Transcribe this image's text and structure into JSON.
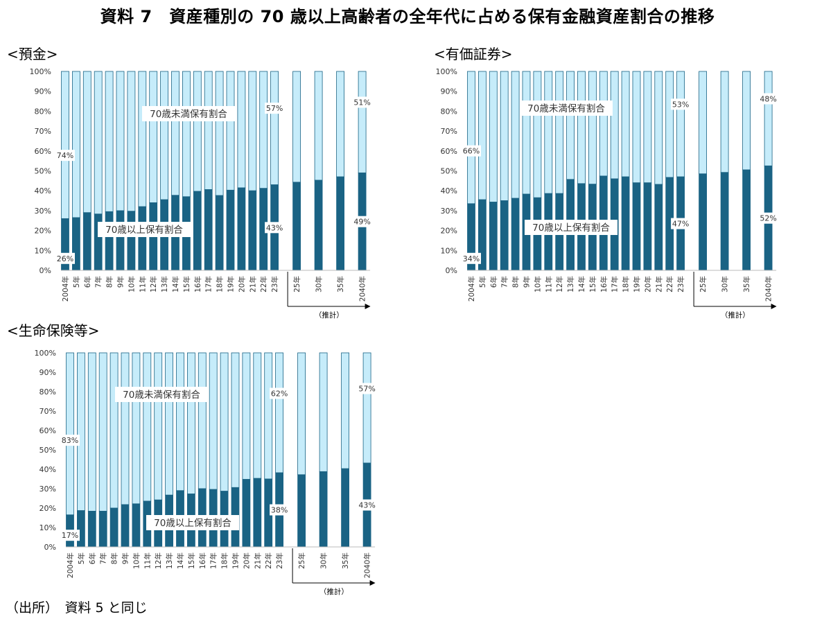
{
  "title": "資料 7　資産種別の 70 歳以上高齢者の全年代に占める保有金融資産割合の推移",
  "footnote": "（出所）　資料 5 と同じ",
  "colors": {
    "senior": "#1a6384",
    "under70": "#c6ecfa",
    "edge": "#1a6384"
  },
  "chart_data": [
    {
      "type": "bar",
      "stacked": true,
      "title": "<預金>",
      "categories": [
        "2004年",
        "5年",
        "6年",
        "7年",
        "8年",
        "9年",
        "10年",
        "11年",
        "12年",
        "13年",
        "14年",
        "15年",
        "16年",
        "17年",
        "18年",
        "19年",
        "20年",
        "21年",
        "22年",
        "23年",
        "25年",
        "30年",
        "35年",
        "2040年"
      ],
      "projection_label": "（推計）",
      "ylim": [
        0,
        100
      ],
      "yticks": [
        "0%",
        "10%",
        "20%",
        "30%",
        "40%",
        "50%",
        "60%",
        "70%",
        "80%",
        "90%",
        "100%"
      ],
      "series": [
        {
          "name": "70歳以上保有割合",
          "values": [
            26,
            26.5,
            29,
            28.3,
            29.5,
            30,
            29.7,
            32,
            34,
            35.5,
            37.7,
            37,
            39.7,
            40.6,
            37.6,
            40.3,
            41.5,
            40,
            41.2,
            43,
            44.3,
            45.3,
            47,
            49
          ]
        },
        {
          "name": "70歳未満保有割合",
          "values": [
            74,
            73.5,
            71,
            71.7,
            70.5,
            70,
            70.3,
            68,
            66,
            64.5,
            62.3,
            63,
            60.3,
            59.4,
            62.4,
            59.7,
            58.5,
            60,
            58.8,
            57,
            55.7,
            54.7,
            53,
            51
          ]
        }
      ],
      "data_labels": [
        {
          "text": "26%",
          "series": 0,
          "index": 0
        },
        {
          "text": "74%",
          "series": 1,
          "index": 0
        },
        {
          "text": "43%",
          "series": 0,
          "index": 19
        },
        {
          "text": "57%",
          "series": 1,
          "index": 19
        },
        {
          "text": "49%",
          "series": 0,
          "index": 23
        },
        {
          "text": "51%",
          "series": 1,
          "index": 23
        }
      ]
    },
    {
      "type": "bar",
      "stacked": true,
      "title": "<有価証券>",
      "categories": [
        "2004年",
        "5年",
        "6年",
        "7年",
        "8年",
        "9年",
        "10年",
        "11年",
        "12年",
        "13年",
        "14年",
        "15年",
        "16年",
        "17年",
        "18年",
        "19年",
        "20年",
        "21年",
        "22年",
        "23年",
        "25年",
        "30年",
        "35年",
        "2040年"
      ],
      "projection_label": "（推計）",
      "ylim": [
        0,
        100
      ],
      "yticks": [
        "0%",
        "10%",
        "20%",
        "30%",
        "40%",
        "50%",
        "60%",
        "70%",
        "80%",
        "90%",
        "100%"
      ],
      "series": [
        {
          "name": "70歳以上保有割合",
          "values": [
            33.5,
            35.5,
            34.3,
            35,
            36.2,
            38.3,
            36.5,
            38.6,
            38.6,
            45.7,
            43.6,
            43.3,
            47.4,
            46,
            47,
            44,
            44,
            43.2,
            46.7,
            47,
            48.5,
            49.2,
            50.5,
            52.5
          ]
        },
        {
          "name": "70歳未満保有割合",
          "values": [
            66.5,
            64.5,
            65.7,
            65,
            63.8,
            61.7,
            63.5,
            61.4,
            61.4,
            54.3,
            56.4,
            56.7,
            52.6,
            54,
            53,
            56,
            56,
            56.8,
            53.3,
            53,
            51.5,
            50.8,
            49.5,
            47.5
          ]
        }
      ],
      "data_labels": [
        {
          "text": "34%",
          "series": 0,
          "index": 0
        },
        {
          "text": "66%",
          "series": 1,
          "index": 0
        },
        {
          "text": "47%",
          "series": 0,
          "index": 19
        },
        {
          "text": "53%",
          "series": 1,
          "index": 19
        },
        {
          "text": "52%",
          "series": 0,
          "index": 23
        },
        {
          "text": "48%",
          "series": 1,
          "index": 23
        }
      ]
    },
    {
      "type": "bar",
      "stacked": true,
      "title": "<生命保険等>",
      "categories": [
        "2004年",
        "5年",
        "6年",
        "7年",
        "8年",
        "9年",
        "10年",
        "11年",
        "12年",
        "13年",
        "14年",
        "15年",
        "16年",
        "17年",
        "18年",
        "19年",
        "20年",
        "21年",
        "22年",
        "23年",
        "25年",
        "30年",
        "35年",
        "2040年"
      ],
      "projection_label": "（推計）",
      "ylim": [
        0,
        100
      ],
      "yticks": [
        "0%",
        "10%",
        "20%",
        "30%",
        "40%",
        "50%",
        "60%",
        "70%",
        "80%",
        "90%",
        "100%"
      ],
      "series": [
        {
          "name": "70歳以上保有割合",
          "values": [
            16.5,
            18.7,
            18.4,
            18.4,
            20,
            21.8,
            22.2,
            23.6,
            24.2,
            26.7,
            29,
            27.3,
            30,
            29.6,
            28.7,
            30.6,
            34.8,
            35.3,
            35,
            38.2,
            37.2,
            38.8,
            40.3,
            43.2
          ]
        },
        {
          "name": "70歳未満保有割合",
          "values": [
            83.5,
            81.3,
            81.6,
            81.6,
            80,
            78.2,
            77.8,
            76.4,
            75.8,
            73.3,
            71,
            72.7,
            70,
            70.4,
            71.3,
            69.4,
            65.2,
            64.7,
            65,
            61.8,
            62.8,
            61.2,
            59.7,
            56.8
          ]
        }
      ],
      "data_labels": [
        {
          "text": "17%",
          "series": 0,
          "index": 0
        },
        {
          "text": "83%",
          "series": 1,
          "index": 0
        },
        {
          "text": "38%",
          "series": 0,
          "index": 19
        },
        {
          "text": "62%",
          "series": 1,
          "index": 19
        },
        {
          "text": "43%",
          "series": 0,
          "index": 23
        },
        {
          "text": "57%",
          "series": 1,
          "index": 23
        }
      ]
    }
  ]
}
